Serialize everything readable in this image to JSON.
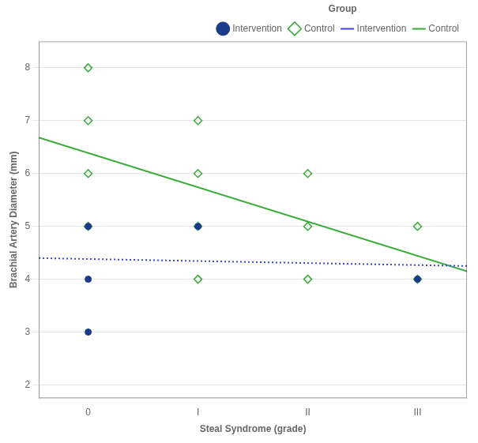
{
  "chart_data": {
    "type": "scatter",
    "xlabel": "Steal Syndrome (grade)",
    "ylabel": "Brachial Artery Diameter (mm)",
    "legend_title": "Group",
    "legend": "upper right",
    "grid": "y",
    "xlim": [
      -0.45,
      3.45
    ],
    "xticks": [
      0,
      {
        "value": 1,
        "label": "I"
      },
      {
        "value": 2,
        "label": "II"
      },
      {
        "value": 3,
        "label": "III"
      }
    ],
    "ylim": [
      1.75,
      8.5
    ],
    "yticks": [
      2,
      3,
      4,
      5,
      6,
      7,
      8
    ],
    "series": [
      {
        "name": "Intervention",
        "type": "scatter",
        "marker": "circle",
        "color": "#1a3a8a",
        "x": [
          0,
          0,
          0,
          1,
          3
        ],
        "values": [
          4.0,
          5.0,
          3.0,
          5.0,
          4.0
        ]
      },
      {
        "name": "Control",
        "type": "scatter",
        "marker": "diamond",
        "color": "#3aaa3a",
        "x": [
          0,
          0,
          0,
          0,
          1,
          1,
          1,
          1,
          2,
          2,
          2,
          3,
          3
        ],
        "values": [
          8.0,
          7.0,
          6.0,
          5.0,
          7.0,
          6.0,
          5.0,
          4.0,
          6.0,
          5.0,
          4.0,
          5.0,
          4.0
        ]
      },
      {
        "name": "Intervention",
        "type": "line",
        "line_style": "dotted",
        "color": "#4444cc",
        "x": [
          -0.45,
          3.45
        ],
        "values": [
          4.4,
          4.25
        ]
      },
      {
        "name": "Control",
        "type": "line",
        "line_style": "solid",
        "color": "#3aaa3a",
        "x": [
          -0.45,
          3.45
        ],
        "values": [
          6.68,
          4.15
        ]
      }
    ]
  }
}
